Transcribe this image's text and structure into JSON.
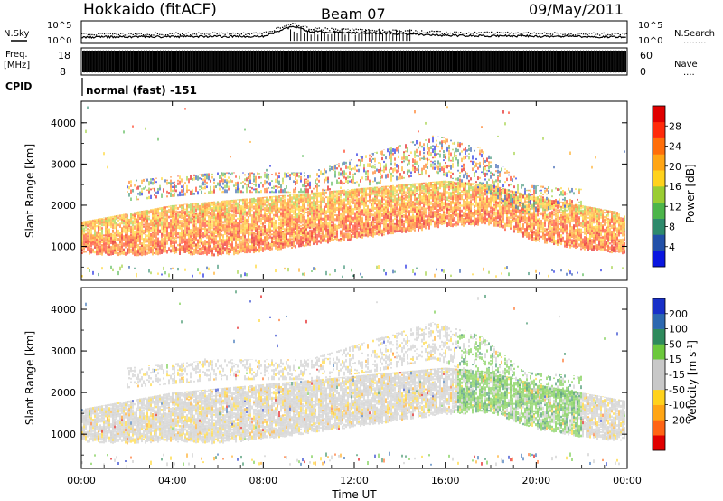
{
  "header": {
    "station": "Hokkaido (fitACF)",
    "beam": "Beam 07",
    "date": "09/May/2011"
  },
  "labels": {
    "nsky": "N.Sky",
    "nsearch": "N.Search",
    "freq": "Freq.",
    "mhz": "[MHz]",
    "cpid": "CPID",
    "nave": "Nave",
    "cpid_value": "normal (fast) -151",
    "dots": "........",
    "dots_short": "...."
  },
  "chart_data": [
    {
      "type": "line",
      "name": "noise-panel",
      "left_ticks": [
        "10^5",
        "10^0"
      ],
      "right_ticks": [
        "10^5",
        "10^0"
      ],
      "left_label": "N.Sky",
      "right_label": "N.Search",
      "xlim": [
        0,
        24
      ],
      "ylog_range": [
        0,
        5
      ],
      "sky_profile": [
        {
          "t": 0,
          "v": 1.2
        },
        {
          "t": 4,
          "v": 1.3
        },
        {
          "t": 8,
          "v": 1.4
        },
        {
          "t": 9.3,
          "v": 3.8
        },
        {
          "t": 10,
          "v": 2.6
        },
        {
          "t": 12,
          "v": 2.2
        },
        {
          "t": 14,
          "v": 2.0
        },
        {
          "t": 16,
          "v": 1.6
        },
        {
          "t": 20,
          "v": 1.4
        },
        {
          "t": 24,
          "v": 1.2
        }
      ]
    },
    {
      "type": "bar",
      "name": "freq-nave-panel",
      "left_ticks": [
        "18",
        "8"
      ],
      "left_range": [
        8,
        18
      ],
      "right_ticks": [
        "60",
        "0"
      ],
      "right_range": [
        0,
        60
      ],
      "freq_mhz": [
        10.5,
        14.5
      ],
      "nave": 30,
      "xlim": [
        0,
        24
      ]
    },
    {
      "type": "heatmap",
      "name": "power-panel",
      "ylabel": "Slant Range [km]",
      "ylim": [
        200,
        4500
      ],
      "yticks": [
        1000,
        2000,
        3000,
        4000
      ],
      "xlim": [
        0,
        24
      ],
      "colorbar_label": "Power [dB]",
      "colorbar_ticks": [
        4,
        8,
        12,
        16,
        20,
        24,
        28
      ],
      "colorbar_range": [
        0,
        32
      ],
      "colors": [
        "#0a16e0",
        "#2250a8",
        "#2e8a6c",
        "#4cb54a",
        "#9acd32",
        "#ffd21c",
        "#ffa514",
        "#ff6e0a",
        "#ff2a0a",
        "#e00000"
      ],
      "main_band": [
        {
          "t": 0,
          "lo": 800,
          "hi": 1600
        },
        {
          "t": 2,
          "lo": 750,
          "hi": 1800
        },
        {
          "t": 4,
          "lo": 800,
          "hi": 2000
        },
        {
          "t": 6,
          "lo": 750,
          "hi": 2100
        },
        {
          "t": 8,
          "lo": 850,
          "hi": 2200
        },
        {
          "t": 10,
          "lo": 1000,
          "hi": 2300
        },
        {
          "t": 12,
          "lo": 1150,
          "hi": 2400
        },
        {
          "t": 14,
          "lo": 1300,
          "hi": 2500
        },
        {
          "t": 16,
          "lo": 1450,
          "hi": 2600
        },
        {
          "t": 18,
          "lo": 1500,
          "hi": 2500
        },
        {
          "t": 20,
          "lo": 1100,
          "hi": 2200
        },
        {
          "t": 22,
          "lo": 900,
          "hi": 2000
        },
        {
          "t": 24,
          "lo": 800,
          "hi": 1800
        }
      ],
      "upper_band": [
        {
          "t": 2,
          "lo": 2100,
          "hi": 2600
        },
        {
          "t": 6,
          "lo": 2300,
          "hi": 2800
        },
        {
          "t": 10,
          "lo": 2300,
          "hi": 2800
        },
        {
          "t": 13,
          "lo": 2500,
          "hi": 3300
        },
        {
          "t": 15.5,
          "lo": 2800,
          "hi": 3700
        },
        {
          "t": 17.5,
          "lo": 2400,
          "hi": 3400
        },
        {
          "t": 19.5,
          "lo": 1800,
          "hi": 2500
        },
        {
          "t": 22,
          "lo": 2000,
          "hi": 2400
        }
      ]
    },
    {
      "type": "heatmap",
      "name": "velocity-panel",
      "ylabel": "Slant Range [km]",
      "xlabel": "Time UT",
      "ylim": [
        200,
        4500
      ],
      "yticks": [
        1000,
        2000,
        3000,
        4000
      ],
      "xlim": [
        0,
        24
      ],
      "xticks": [
        "00:00",
        "04:00",
        "08:00",
        "12:00",
        "16:00",
        "20:00",
        "00:00"
      ],
      "colorbar_label": "Velocity [m s^-1]",
      "colorbar_ticks": [
        "200",
        "100",
        "50",
        "15",
        "-15",
        "-50",
        "-100",
        "-200"
      ],
      "colors": [
        "#1830c8",
        "#2c68b0",
        "#2e8a5c",
        "#6cc83c",
        "#c8c8c8",
        "#c8c8c8",
        "#ffd21c",
        "#ffa514",
        "#ff6414",
        "#e00000"
      ],
      "green_region": {
        "t0": 16.5,
        "t1": 22.0,
        "lo": 800,
        "hi": 3400
      }
    }
  ]
}
